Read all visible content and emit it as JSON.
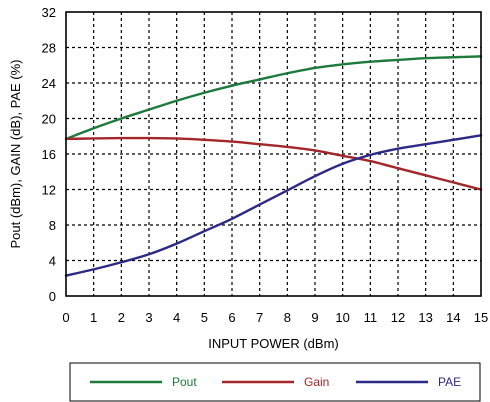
{
  "chart_data": {
    "type": "line",
    "title": "",
    "xlabel": "INPUT POWER (dBm)",
    "ylabel": "Pout (dBm), GAIN (dB), PAE (%)",
    "xlim": [
      0,
      15
    ],
    "ylim": [
      0,
      32
    ],
    "x_ticks": [
      "0",
      "1",
      "2",
      "3",
      "4",
      "5",
      "6",
      "7",
      "8",
      "9",
      "10",
      "11",
      "12",
      "13",
      "14",
      "15"
    ],
    "y_ticks": [
      "0",
      "4",
      "8",
      "12",
      "16",
      "20",
      "24",
      "28",
      "32"
    ],
    "grid": true,
    "legend_position": "bottom",
    "x": [
      0,
      1,
      2,
      3,
      4,
      5,
      6,
      7,
      8,
      9,
      10,
      11,
      12,
      13,
      14,
      15
    ],
    "series": [
      {
        "name": "Pout",
        "color": "#1e7a3c",
        "values": [
          17.7,
          18.9,
          20.0,
          21.0,
          22.0,
          22.9,
          23.7,
          24.4,
          25.1,
          25.7,
          26.1,
          26.4,
          26.6,
          26.8,
          26.9,
          27.0
        ]
      },
      {
        "name": "Gain",
        "color": "#a3262a",
        "values": [
          17.7,
          17.75,
          17.8,
          17.8,
          17.75,
          17.6,
          17.4,
          17.1,
          16.8,
          16.4,
          15.8,
          15.2,
          14.4,
          13.6,
          12.8,
          12.0
        ]
      },
      {
        "name": "PAE",
        "color": "#2b2a86",
        "values": [
          2.3,
          3.0,
          3.8,
          4.7,
          5.9,
          7.3,
          8.7,
          10.3,
          11.9,
          13.5,
          14.9,
          15.9,
          16.6,
          17.1,
          17.6,
          18.1
        ]
      }
    ]
  }
}
